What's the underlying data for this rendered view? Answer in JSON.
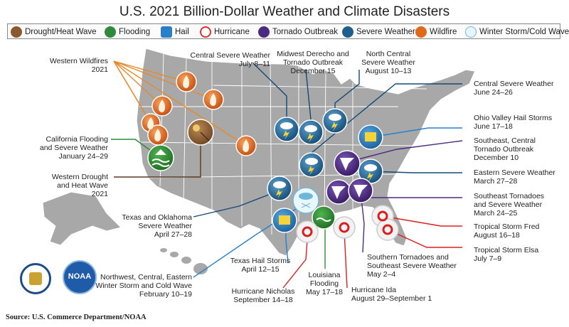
{
  "title": "U.S. 2021 Billion-Dollar Weather and Climate Disasters",
  "legend": [
    {
      "key": "drought",
      "label": "Drought/Heat Wave",
      "icon": "drought-icon",
      "color": "#8b5a2b"
    },
    {
      "key": "flooding",
      "label": "Flooding",
      "icon": "flood-icon",
      "color": "#2e8b3a"
    },
    {
      "key": "hail",
      "label": "Hail",
      "icon": "hail-icon",
      "color": "#2a7fc9"
    },
    {
      "key": "hurricane",
      "label": "Hurricane",
      "icon": "hurricane-icon",
      "color": "#e03030"
    },
    {
      "key": "tornado",
      "label": "Tornado Outbreak",
      "icon": "tornado-icon",
      "color": "#4b2a82"
    },
    {
      "key": "severe",
      "label": "Severe Weather",
      "icon": "severe-weather-icon",
      "color": "#1f5f8b"
    },
    {
      "key": "wildfire",
      "label": "Wildfire",
      "icon": "wildfire-icon",
      "color": "#e06a1a"
    },
    {
      "key": "winter",
      "label": "Winter Storm/Cold Wave",
      "icon": "winter-storm-icon",
      "color": "#9ed2ea"
    }
  ],
  "labels": {
    "western_wildfires": [
      "Western Wildfires",
      "2021"
    ],
    "ca_flood": [
      "California Flooding",
      "and Severe Weather",
      "January 24–29"
    ],
    "western_drought": [
      "Western Drought",
      "and Heat Wave",
      "2021"
    ],
    "central_severe_july": [
      "Central Severe Weather",
      "July 8–11"
    ],
    "midwest_derecho": [
      "Midwest Derecho and",
      "Tornado Outbreak",
      "December 15"
    ],
    "north_central": [
      "North Central",
      "Severe Weather",
      "August 10–13"
    ],
    "central_severe_june": [
      "Central Severe Weather",
      "June 24–26"
    ],
    "ohio_hail": [
      "Ohio Valley Hail Storms",
      "June 17–18"
    ],
    "se_tornado_dec": [
      "Southeast, Central",
      "Tornado Outbreak",
      "December 10"
    ],
    "eastern_severe": [
      "Eastern Severe Weather",
      "March 27–28"
    ],
    "se_tornadoes_mar": [
      "Southeast Tornadoes",
      "and Severe Weather",
      "March 24–25"
    ],
    "ts_fred": [
      "Tropical Storm Fred",
      "August 16–18"
    ],
    "ts_elsa": [
      "Tropical Storm Elsa",
      "July 7–9"
    ],
    "tx_ok": [
      "Texas and Oklahoma",
      "Severe Weather",
      "April 27–28"
    ],
    "tx_hail": [
      "Texas Hail Storms",
      "April 12–15"
    ],
    "winter_storm": [
      "Northwest, Central, Eastern",
      "Winter Storm and Cold Wave",
      "February 10–19"
    ],
    "nicholas": [
      "Hurricane Nicholas",
      "September 14–18"
    ],
    "la_flood": [
      "Louisiana",
      "Flooding",
      "May 17–18"
    ],
    "ida": [
      "Hurricane Ida",
      "August 29–September 1"
    ],
    "southern_tornadoes": [
      "Southern Tornadoes and",
      "Southeast Severe Weather",
      "May 2–4"
    ]
  },
  "source": "Source: U.S. Commerce Department/NOAA",
  "logos": {
    "noaa_text": "NOAA"
  }
}
